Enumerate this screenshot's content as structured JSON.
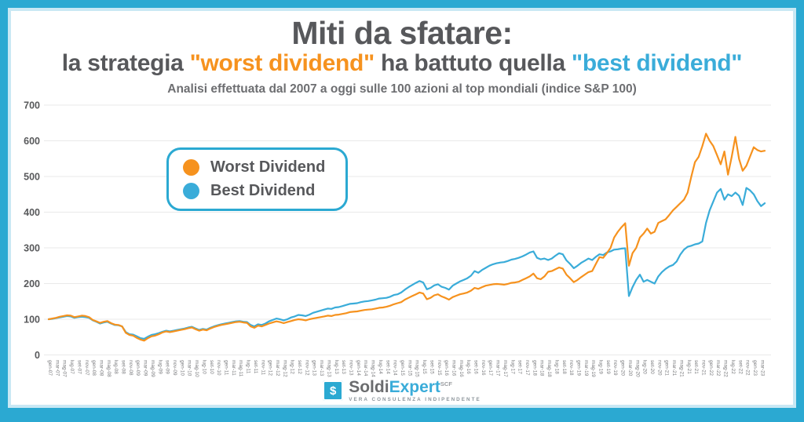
{
  "frame": {
    "border_color": "#2BA9D2",
    "inner_stripe_color": "#C9E8F4"
  },
  "header": {
    "title": "Miti da sfatare:",
    "subtitle_segments": [
      {
        "text": "la strategia ",
        "color": "#57585B"
      },
      {
        "text": "\"worst dividend\"",
        "color": "#F6921E"
      },
      {
        "text": " ha battuto quella ",
        "color": "#57585B"
      },
      {
        "text": "\"best dividend\"",
        "color": "#3AACD9"
      }
    ],
    "note": "Analisi effettuata dal 2007 a oggi sulle 100 azioni al top mondiali (indice S&P 100)"
  },
  "legend": {
    "items": [
      {
        "label": "Worst Dividend",
        "color": "#F6921E"
      },
      {
        "label": "Best Dividend",
        "color": "#3AACD9"
      }
    ]
  },
  "chart_data": {
    "type": "line",
    "x_unit": "month",
    "x_start": "gen-07",
    "x_end": "apr-23",
    "ylim": [
      0,
      700
    ],
    "yticks": [
      0,
      100,
      200,
      300,
      400,
      500,
      600,
      700
    ],
    "grid": true,
    "legend_position": "top-left-inset",
    "x_tick_labels": [
      "gen-07",
      "mar-07",
      "mag-07",
      "lug-07",
      "set-07",
      "nov-07",
      "gen-08",
      "mar-08",
      "mag-08",
      "lug-08",
      "set-08",
      "nov-08",
      "gen-09",
      "mar-09",
      "mag-09",
      "lug-09",
      "set-09",
      "nov-09",
      "gen-10",
      "mar-10",
      "mag-10",
      "lug-10",
      "set-10",
      "nov-10",
      "gen-11",
      "mar-11",
      "mag-11",
      "lug-11",
      "set-11",
      "nov-11",
      "gen-12",
      "mar-12",
      "mag-12",
      "lug-12",
      "set-12",
      "nov-12",
      "gen-13",
      "mar-13",
      "mag-13",
      "lug-13",
      "set-13",
      "nov-13",
      "gen-14",
      "mar-14",
      "mag-14",
      "lug-14",
      "set-14",
      "nov-14",
      "gen-15",
      "mar-15",
      "mag-15",
      "lug-15",
      "set-15",
      "nov-15",
      "gen-16",
      "mar-16",
      "mag-16",
      "lug-16",
      "set-16",
      "nov-16",
      "gen-17",
      "mar-17",
      "mag-17",
      "lug-17",
      "set-17",
      "nov-17",
      "gen-18",
      "mar-18",
      "mag-18",
      "lug-18",
      "set-18",
      "nov-18",
      "gen-19",
      "mar-19",
      "mag-19",
      "lug-19",
      "set-19",
      "nov-19",
      "gen-20",
      "mar-20",
      "mag-20",
      "lug-20",
      "set-20",
      "nov-20",
      "gen-21",
      "mar-21",
      "mag-21",
      "lug-21",
      "set-21",
      "nov-21",
      "gen-22",
      "mar-22",
      "mag-22",
      "lug-22",
      "set-22",
      "nov-22",
      "gen-23",
      "mar-23"
    ],
    "series": [
      {
        "name": "Worst Dividend",
        "color": "#F6921E",
        "values": [
          100,
          102,
          104,
          107,
          109,
          111,
          110,
          106,
          108,
          110,
          109,
          106,
          98,
          94,
          90,
          93,
          95,
          89,
          85,
          84,
          80,
          62,
          56,
          54,
          48,
          43,
          40,
          47,
          52,
          54,
          58,
          63,
          66,
          64,
          66,
          68,
          70,
          72,
          75,
          77,
          72,
          68,
          71,
          69,
          74,
          78,
          81,
          84,
          86,
          88,
          90,
          92,
          93,
          91,
          90,
          80,
          76,
          82,
          80,
          84,
          88,
          91,
          94,
          92,
          89,
          92,
          95,
          98,
          100,
          99,
          97,
          100,
          102,
          104,
          106,
          108,
          110,
          109,
          112,
          113,
          115,
          117,
          120,
          121,
          122,
          124,
          126,
          127,
          128,
          130,
          132,
          133,
          135,
          138,
          142,
          145,
          148,
          155,
          160,
          165,
          170,
          175,
          172,
          156,
          160,
          167,
          170,
          164,
          160,
          155,
          162,
          166,
          170,
          172,
          175,
          180,
          188,
          185,
          190,
          194,
          196,
          198,
          199,
          198,
          197,
          199,
          202,
          203,
          205,
          210,
          215,
          220,
          228,
          215,
          212,
          220,
          233,
          235,
          240,
          245,
          242,
          225,
          215,
          204,
          210,
          218,
          225,
          232,
          235,
          255,
          274,
          272,
          285,
          300,
          329,
          345,
          358,
          369,
          250,
          285,
          300,
          329,
          340,
          354,
          340,
          345,
          370,
          375,
          380,
          392,
          405,
          415,
          425,
          435,
          455,
          500,
          540,
          555,
          585,
          620,
          600,
          585,
          560,
          534,
          570,
          505,
          555,
          611,
          549,
          516,
          530,
          556,
          582,
          574,
          570,
          572
        ]
      },
      {
        "name": "Best Dividend",
        "color": "#3AACD9",
        "values": [
          100,
          101,
          103,
          105,
          107,
          109,
          108,
          104,
          106,
          107,
          106,
          104,
          97,
          93,
          88,
          91,
          93,
          88,
          84,
          83,
          80,
          64,
          58,
          57,
          52,
          47,
          45,
          51,
          56,
          58,
          61,
          65,
          68,
          66,
          68,
          70,
          72,
          74,
          77,
          79,
          74,
          70,
          73,
          71,
          76,
          80,
          83,
          86,
          88,
          90,
          92,
          94,
          95,
          93,
          92,
          84,
          80,
          86,
          84,
          88,
          94,
          98,
          102,
          100,
          97,
          100,
          105,
          108,
          112,
          111,
          109,
          113,
          118,
          121,
          124,
          127,
          130,
          129,
          133,
          134,
          137,
          140,
          143,
          144,
          145,
          148,
          150,
          151,
          153,
          155,
          158,
          159,
          160,
          163,
          168,
          170,
          175,
          183,
          190,
          196,
          202,
          207,
          203,
          184,
          188,
          195,
          198,
          191,
          188,
          183,
          194,
          200,
          206,
          210,
          215,
          222,
          235,
          230,
          238,
          244,
          250,
          254,
          257,
          259,
          260,
          263,
          267,
          269,
          272,
          276,
          281,
          287,
          290,
          272,
          268,
          270,
          266,
          270,
          278,
          285,
          282,
          265,
          255,
          243,
          250,
          258,
          264,
          270,
          266,
          275,
          282,
          280,
          287,
          290,
          295,
          296,
          298,
          299,
          165,
          190,
          210,
          225,
          205,
          210,
          205,
          200,
          220,
          232,
          241,
          248,
          252,
          262,
          281,
          295,
          303,
          306,
          310,
          312,
          318,
          370,
          405,
          430,
          455,
          465,
          435,
          450,
          445,
          455,
          446,
          420,
          468,
          461,
          450,
          431,
          417,
          425
        ]
      }
    ]
  },
  "footer": {
    "logo_symbol": "$",
    "brand_part1": "Soldi",
    "brand_part2": "Expert",
    "brand_sup": "SCF",
    "tagline": "VERA CONSULENZA INDIPENDENTE"
  }
}
